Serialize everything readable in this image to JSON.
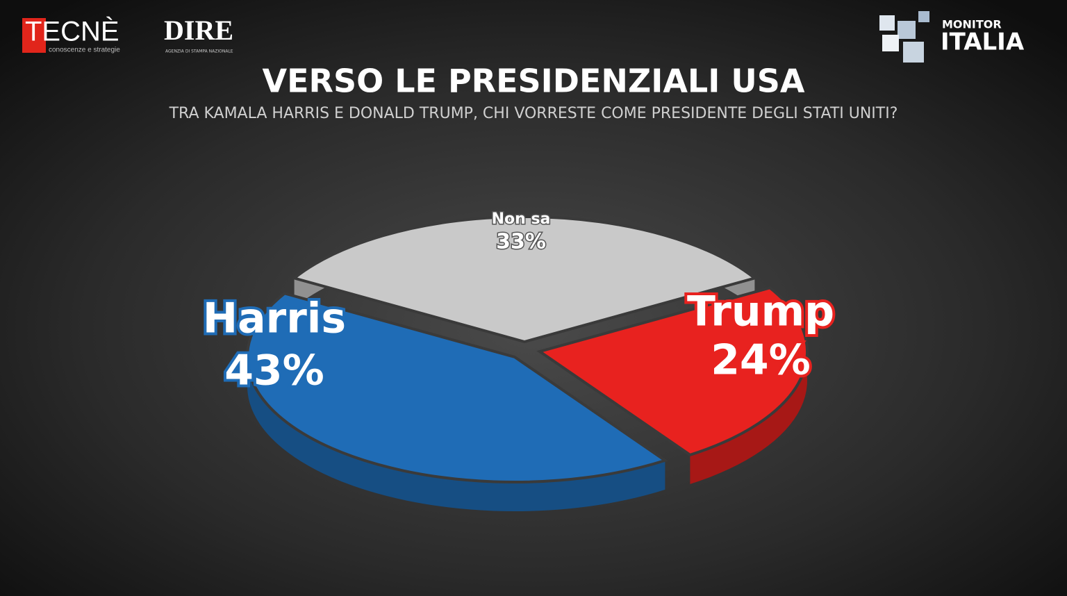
{
  "header": {
    "brand_left": "TECNÈ",
    "brand_left_tagline": "conoscenze e strategie",
    "brand_mid": "DIRE",
    "brand_mid_tagline": "AGENZIA DI STAMPA NAZIONALE",
    "brand_right_top": "MONITOR",
    "brand_right_bottom": "ITALIA"
  },
  "chart_data": {
    "type": "pie",
    "title": "VERSO LE PRESIDENZIALI USA",
    "subtitle": "TRA KAMALA HARRIS E DONALD TRUMP, CHI VORRESTE COME PRESIDENTE DEGLI STATI UNITI?",
    "categories": [
      "Non sa",
      "Trump",
      "Harris"
    ],
    "values": [
      33,
      24,
      43
    ],
    "value_labels": [
      "33%",
      "24%",
      "43%"
    ],
    "colors": [
      "#c9c9c9",
      "#e8221f",
      "#1f6cb6"
    ]
  }
}
